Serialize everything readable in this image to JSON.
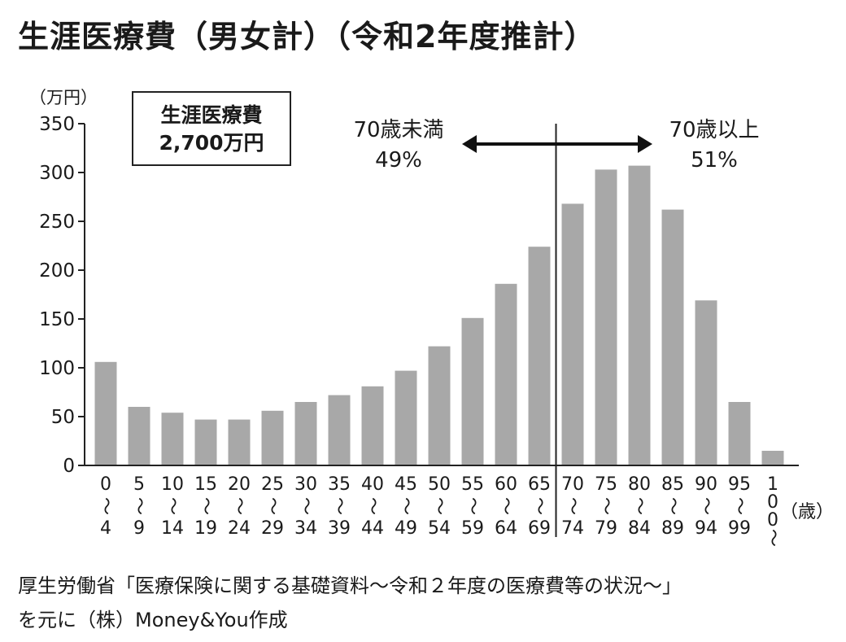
{
  "title": "生涯医療費（男女計）（令和2年度推計）",
  "unit_label": "（万円）",
  "total_box": {
    "line1": "生涯医療費",
    "line2": "2,700万円"
  },
  "annotations": {
    "under70_label": "70歳未満",
    "under70_pct": "49%",
    "over70_label": "70歳以上",
    "over70_pct": "51%"
  },
  "x_unit": "（歳）",
  "source_line1": "厚生労働省「医療保険に関する基礎資料～令和２年度の医療費等の状況～」",
  "source_line2": "を元に（株）Money&You作成",
  "chart_data": {
    "type": "bar",
    "categories": [
      [
        "0",
        "～",
        "4"
      ],
      [
        "5",
        "～",
        "9"
      ],
      [
        "10",
        "～",
        "14"
      ],
      [
        "15",
        "～",
        "19"
      ],
      [
        "20",
        "～",
        "24"
      ],
      [
        "25",
        "～",
        "29"
      ],
      [
        "30",
        "～",
        "34"
      ],
      [
        "35",
        "～",
        "39"
      ],
      [
        "40",
        "～",
        "44"
      ],
      [
        "45",
        "～",
        "49"
      ],
      [
        "50",
        "～",
        "54"
      ],
      [
        "55",
        "～",
        "59"
      ],
      [
        "60",
        "～",
        "64"
      ],
      [
        "65",
        "～",
        "69"
      ],
      [
        "70",
        "～",
        "74"
      ],
      [
        "75",
        "～",
        "79"
      ],
      [
        "80",
        "～",
        "84"
      ],
      [
        "85",
        "～",
        "89"
      ],
      [
        "90",
        "～",
        "94"
      ],
      [
        "95",
        "～",
        "99"
      ],
      [
        "1",
        "0",
        "0",
        "～"
      ]
    ],
    "values": [
      106,
      60,
      54,
      47,
      47,
      56,
      65,
      72,
      81,
      97,
      122,
      151,
      186,
      224,
      268,
      303,
      307,
      262,
      169,
      65,
      15
    ],
    "ylim": [
      0,
      350
    ],
    "yticks": [
      "0",
      "50",
      "100",
      "150",
      "200",
      "250",
      "300",
      "350"
    ],
    "bar_color": "#a8a8a8",
    "divider_after_index": 13
  }
}
